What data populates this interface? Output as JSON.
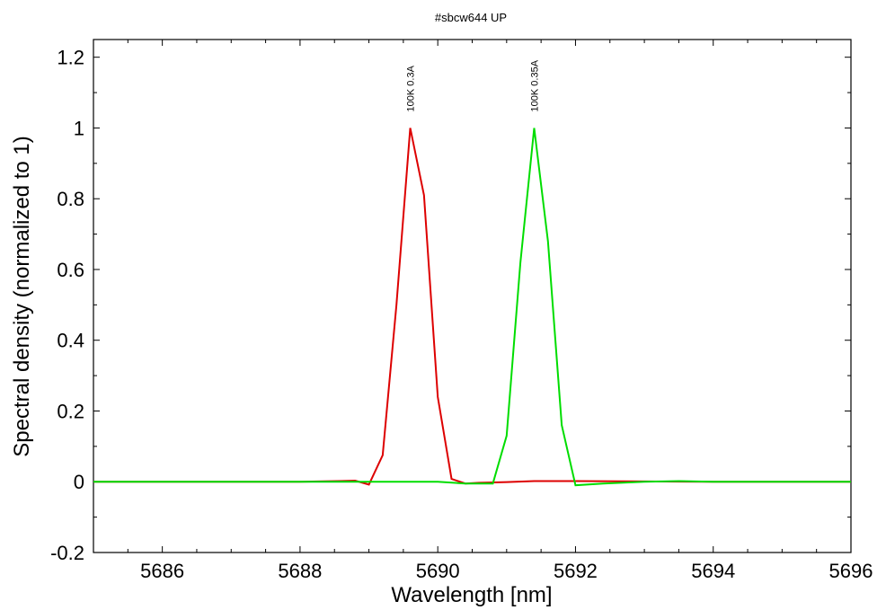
{
  "chart_data": {
    "type": "line",
    "title": "#sbcw644 UP",
    "xlabel": "Wavelength [nm]",
    "ylabel": "Spectral density (normalized to 1)",
    "xlim": [
      5685,
      5696
    ],
    "ylim": [
      -0.2,
      1.25
    ],
    "xticks": [
      5686,
      5688,
      5690,
      5692,
      5694,
      5696
    ],
    "xtick_labels": [
      "5686",
      "5688",
      "5690",
      "5692",
      "5694",
      "5696"
    ],
    "yticks": [
      -0.2,
      0,
      0.2,
      0.4,
      0.6,
      0.8,
      1,
      1.2
    ],
    "ytick_labels": [
      "-0.2",
      "0",
      "0.2",
      "0.4",
      "0.6",
      "0.8",
      "1",
      "1.2"
    ],
    "grid": false,
    "series": [
      {
        "color": "#dd0000",
        "peak_label": "100K 0.3A",
        "x": [
          5685.0,
          5686.0,
          5687.0,
          5688.0,
          5688.8,
          5689.0,
          5689.2,
          5689.4,
          5689.6,
          5689.8,
          5690.0,
          5690.2,
          5690.4,
          5690.6,
          5690.8,
          5691.0,
          5691.4,
          5692.0,
          5693.0,
          5694.0,
          5695.0,
          5696.0
        ],
        "y": [
          0.0,
          0.0,
          0.0,
          0.0,
          0.003,
          -0.008,
          0.075,
          0.5,
          1.0,
          0.81,
          0.24,
          0.008,
          -0.005,
          -0.003,
          -0.002,
          -0.001,
          0.002,
          0.002,
          0.001,
          0.0,
          0.0,
          0.0
        ]
      },
      {
        "color": "#00dd00",
        "peak_label": "100K 0.35A",
        "x": [
          5685.0,
          5686.0,
          5687.0,
          5688.0,
          5689.0,
          5689.6,
          5690.0,
          5690.4,
          5690.8,
          5691.0,
          5691.2,
          5691.4,
          5691.6,
          5691.8,
          5692.0,
          5692.4,
          5693.0,
          5693.5,
          5694.0,
          5695.0,
          5696.0
        ],
        "y": [
          0.0,
          0.0,
          0.0,
          0.0,
          0.0,
          0.0,
          0.0,
          -0.005,
          -0.005,
          0.13,
          0.62,
          1.0,
          0.68,
          0.16,
          -0.01,
          -0.005,
          0.0,
          0.002,
          0.0,
          0.0,
          0.0
        ]
      }
    ],
    "annotations": [
      {
        "text": "100K 0.3A",
        "x": 5689.6,
        "y": 1.0
      },
      {
        "text": "100K 0.35A",
        "x": 5691.4,
        "y": 1.0
      }
    ]
  }
}
